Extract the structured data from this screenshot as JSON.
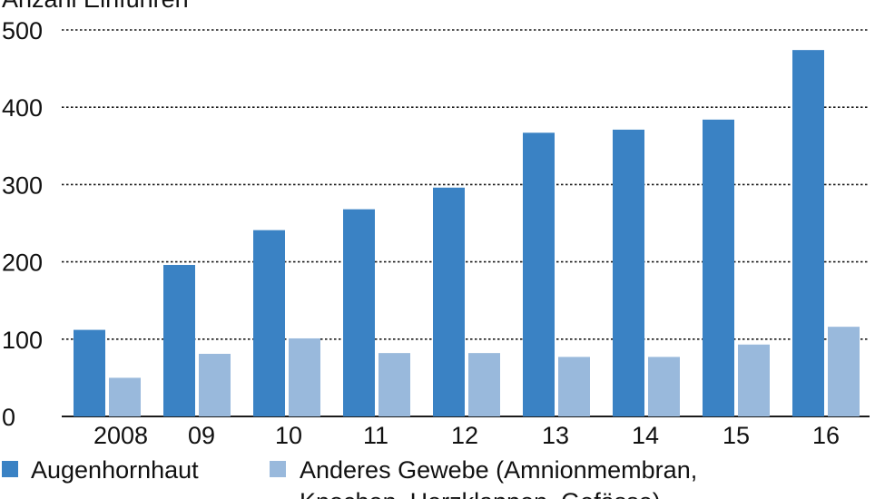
{
  "chart_data": {
    "type": "bar",
    "ylabel": "Anzahl Einführen",
    "ylim": [
      0,
      500
    ],
    "yticks": [
      0,
      100,
      200,
      300,
      400,
      500
    ],
    "grid": "dotted horizontal",
    "categories": [
      "2008",
      "09",
      "10",
      "11",
      "12",
      "13",
      "14",
      "15",
      "16"
    ],
    "series": [
      {
        "name": "Augenhornhaut",
        "color": "#3a82c4",
        "values": [
          112,
          196,
          241,
          268,
          296,
          367,
          371,
          384,
          474
        ]
      },
      {
        "name": "Anderes Gewebe (Amnionmembran, Knochen, Herzklappen, Gefässe)",
        "color": "#99b9dc",
        "values": [
          50,
          81,
          101,
          82,
          82,
          77,
          77,
          93,
          116
        ]
      }
    ],
    "legend": {
      "position": "bottom",
      "series_2_line_1": "Anderes Gewebe (Amnionmembran,",
      "series_2_line_2": "Knochen, Herzklappen, Gefässe)"
    }
  }
}
